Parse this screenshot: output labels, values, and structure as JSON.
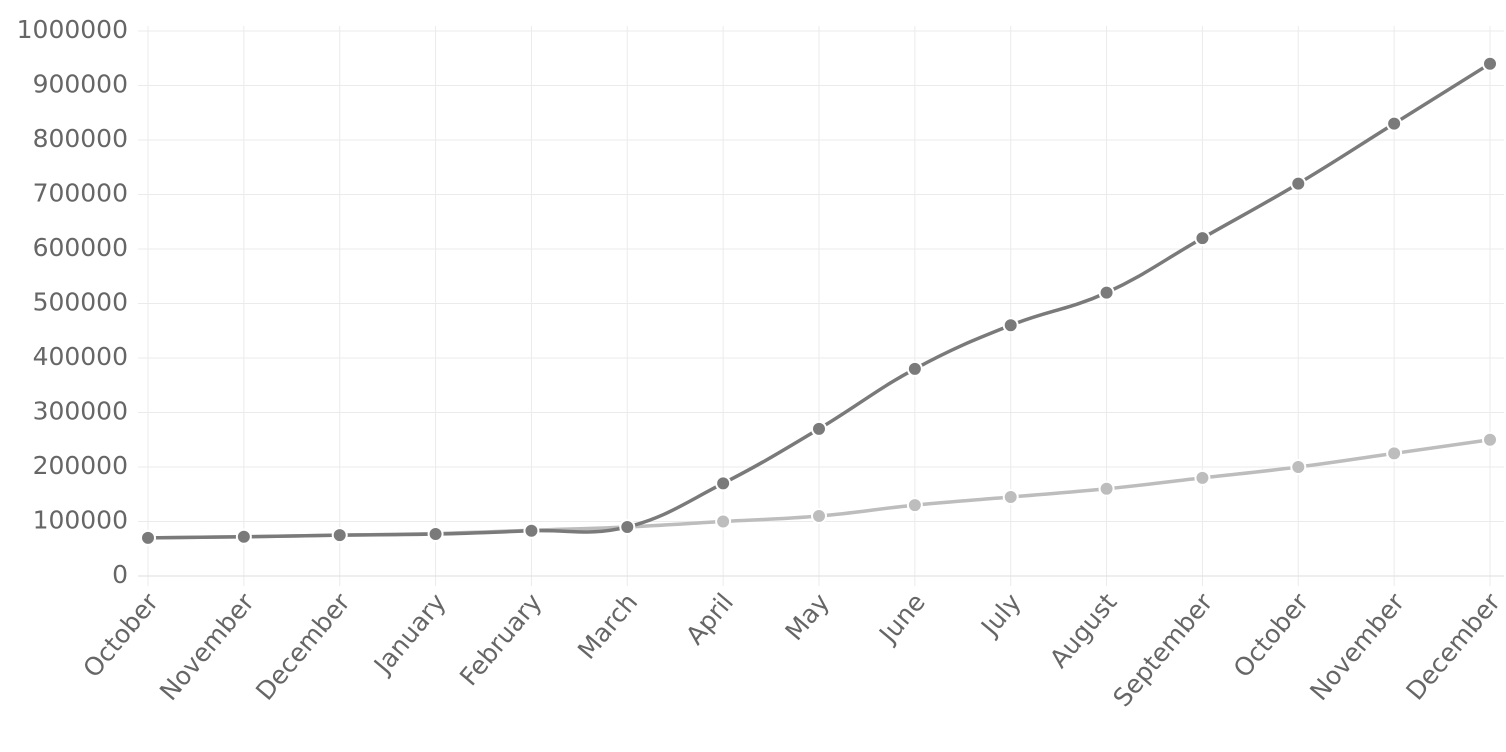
{
  "chart_data": {
    "type": "line",
    "categories": [
      "October",
      "November",
      "December",
      "January",
      "February",
      "March",
      "April",
      "May",
      "June",
      "July",
      "August",
      "September",
      "October",
      "November",
      "December"
    ],
    "series": [
      {
        "color": "#7a7a7a",
        "values": [
          70000,
          72000,
          75000,
          77000,
          83000,
          90000,
          170000,
          270000,
          380000,
          460000,
          520000,
          620000,
          720000,
          830000,
          940000
        ]
      },
      {
        "color": "#bdbdbd",
        "values": [
          70000,
          72000,
          75000,
          78000,
          84000,
          90000,
          100000,
          110000,
          130000,
          145000,
          160000,
          180000,
          200000,
          225000,
          250000
        ]
      }
    ],
    "ylim": [
      0,
      1000000
    ],
    "yticks": [
      0,
      100000,
      200000,
      300000,
      400000,
      500000,
      600000,
      700000,
      800000,
      900000,
      1000000
    ],
    "grid": true
  }
}
